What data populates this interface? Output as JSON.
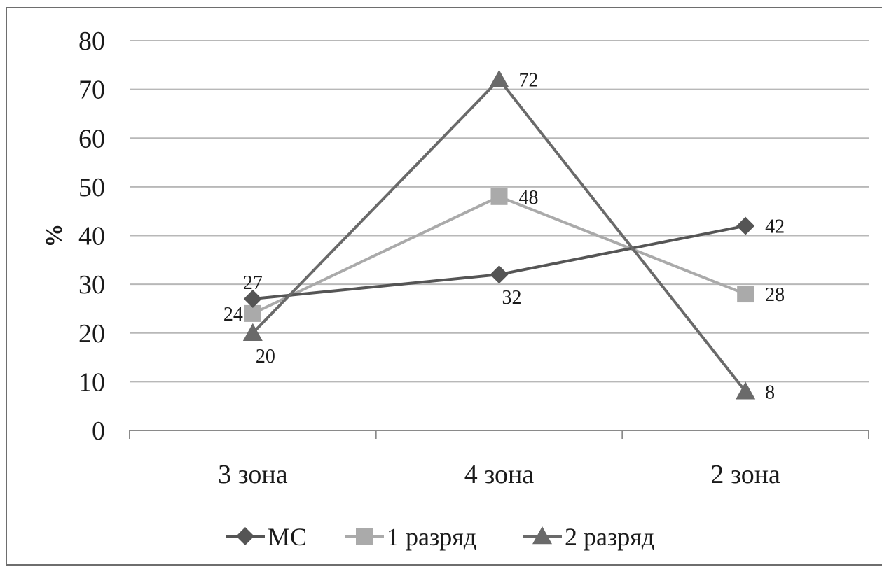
{
  "chart_data": {
    "type": "line",
    "categories": [
      "3 зона",
      "4 зона",
      "2 зона"
    ],
    "ylabel": "%",
    "ylim": [
      0,
      80
    ],
    "yticks": [
      0,
      10,
      20,
      30,
      40,
      50,
      60,
      70,
      80
    ],
    "grid": true,
    "legend_position": "bottom",
    "series": [
      {
        "name": "МС",
        "values": [
          27,
          32,
          42
        ],
        "color": "#555555",
        "marker": "diamond",
        "label_positions": [
          "above",
          "below",
          "right"
        ]
      },
      {
        "name": "1 разряд",
        "values": [
          24,
          48,
          28
        ],
        "color": "#aaaaaa",
        "marker": "square",
        "label_positions": [
          "left",
          "right",
          "right"
        ]
      },
      {
        "name": "2 разряд",
        "values": [
          20,
          72,
          8
        ],
        "color": "#6a6a6a",
        "marker": "triangle",
        "label_positions": [
          "below",
          "right",
          "right"
        ]
      }
    ]
  }
}
